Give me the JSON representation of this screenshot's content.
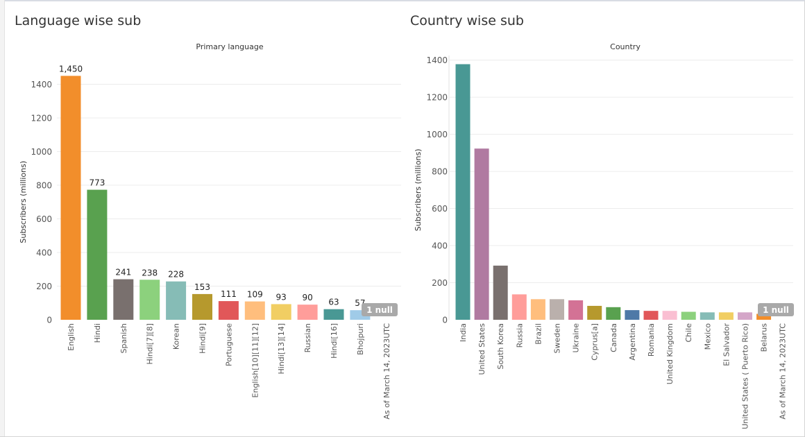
{
  "panels": {
    "left_title": "Language wise sub",
    "right_title": "Country wise sub"
  },
  "chart_data": [
    {
      "type": "bar",
      "title": "Primary language",
      "xlabel": "",
      "ylabel": "Subscribers (millions)",
      "ylim": [
        0,
        1500
      ],
      "yticks": [
        0,
        200,
        400,
        600,
        800,
        1000,
        1200,
        1400
      ],
      "grid": true,
      "categories": [
        "English",
        "Hindi",
        "Spanish",
        "Hindi[7][8]",
        "Korean",
        "Hindi[9]",
        "Portuguese",
        "English[10][11][12]",
        "Hindi[13][14]",
        "Russian",
        "Hindi[16]",
        "Bhojpuri",
        "As of March 14, 2023UTC"
      ],
      "values": [
        1450,
        773,
        241,
        238,
        228,
        153,
        111,
        109,
        93,
        90,
        63,
        57,
        null
      ],
      "data_labels": [
        "1,450",
        "773",
        "241",
        "238",
        "228",
        "153",
        "111",
        "109",
        "93",
        "90",
        "63",
        "57",
        ""
      ],
      "colors": [
        "#f28e2b",
        "#59a14f",
        "#79706e",
        "#8cd17d",
        "#86bcb6",
        "#b6992d",
        "#e15759",
        "#ffbe7d",
        "#f1ce63",
        "#ff9d9a",
        "#499894",
        "#a0cbe8",
        "#cccccc"
      ],
      "null_badge": "1 null"
    },
    {
      "type": "bar",
      "title": "Country",
      "xlabel": "",
      "ylabel": "Subscribers (millions)",
      "ylim": [
        0,
        1400
      ],
      "yticks": [
        0,
        200,
        400,
        600,
        800,
        1000,
        1200,
        1400
      ],
      "grid": true,
      "categories": [
        "India",
        "United States",
        "South Korea",
        "Russia",
        "Brazil",
        "Sweden",
        "Ukraine",
        "Cyprus[a]",
        "Canada",
        "Argentina",
        "Romania",
        "United Kingdom",
        "Chile",
        "Mexico",
        "El Salvador",
        "United States ( Puerto Rico)",
        "Belarus",
        "As of March 14, 2023UTC"
      ],
      "values": [
        1378,
        923,
        292,
        137,
        111,
        111,
        105,
        75,
        68,
        52,
        48,
        48,
        43,
        40,
        40,
        40,
        32,
        null
      ],
      "colors": [
        "#499894",
        "#b07aa1",
        "#79706e",
        "#ff9d9a",
        "#ffbe7d",
        "#bab0ac",
        "#d37295",
        "#b6992d",
        "#59a14f",
        "#4e79a7",
        "#e15759",
        "#fabfd2",
        "#8cd17d",
        "#86bcb6",
        "#f1ce63",
        "#d4a6c8",
        "#f28e2b",
        "#cccccc"
      ],
      "null_badge": "1 null"
    }
  ]
}
